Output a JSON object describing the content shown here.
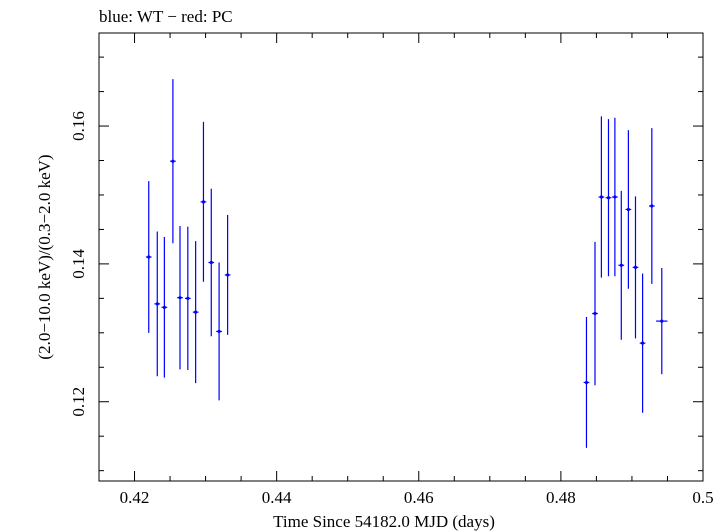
{
  "chart_data": {
    "type": "scatter",
    "title": "blue: WT − red: PC",
    "xlabel": "Time Since 54182.0 MJD (days)",
    "ylabel": "(2.0−10.0 keV)/(0.3−2.0 keV)",
    "xlim": [
      0.415,
      0.5
    ],
    "ylim": [
      0.1085,
      0.1735
    ],
    "xticks": [
      0.42,
      0.44,
      0.46,
      0.48,
      0.5
    ],
    "xtick_labels": [
      "0.42",
      "0.44",
      "0.46",
      "0.48",
      "0.5"
    ],
    "yticks": [
      0.12,
      0.14,
      0.16
    ],
    "ytick_labels": [
      "0.12",
      "0.14",
      "0.16"
    ],
    "grid": false,
    "series": [
      {
        "color": "#0000ff",
        "points": [
          {
            "x": 0.422,
            "y": 0.141,
            "yerr": 0.011,
            "xerr": 0.0004
          },
          {
            "x": 0.4232,
            "y": 0.1342,
            "yerr": 0.0105,
            "xerr": 0.0004
          },
          {
            "x": 0.4242,
            "y": 0.1337,
            "yerr": 0.0102,
            "xerr": 0.0004
          },
          {
            "x": 0.4254,
            "y": 0.1549,
            "yerr": 0.0119,
            "xerr": 0.0004
          },
          {
            "x": 0.4264,
            "y": 0.1351,
            "yerr": 0.0104,
            "xerr": 0.0004
          },
          {
            "x": 0.4275,
            "y": 0.135,
            "yerr": 0.0104,
            "xerr": 0.0004
          },
          {
            "x": 0.4286,
            "y": 0.133,
            "yerr": 0.0103,
            "xerr": 0.0004
          },
          {
            "x": 0.4297,
            "y": 0.149,
            "yerr": 0.0116,
            "xerr": 0.0004
          },
          {
            "x": 0.4308,
            "y": 0.1402,
            "yerr": 0.0107,
            "xerr": 0.0004
          },
          {
            "x": 0.4319,
            "y": 0.1302,
            "yerr": 0.01,
            "xerr": 0.0004
          },
          {
            "x": 0.4331,
            "y": 0.1384,
            "yerr": 0.0087,
            "xerr": 0.0004
          },
          {
            "x": 0.4836,
            "y": 0.1228,
            "yerr": 0.0095,
            "xerr": 0.0004
          },
          {
            "x": 0.4848,
            "y": 0.1328,
            "yerr": 0.0104,
            "xerr": 0.0004
          },
          {
            "x": 0.4857,
            "y": 0.1497,
            "yerr": 0.0117,
            "xerr": 0.0004
          },
          {
            "x": 0.4867,
            "y": 0.1496,
            "yerr": 0.0114,
            "xerr": 0.0004
          },
          {
            "x": 0.4876,
            "y": 0.1497,
            "yerr": 0.0115,
            "xerr": 0.0004
          },
          {
            "x": 0.4885,
            "y": 0.1398,
            "yerr": 0.0108,
            "xerr": 0.0004
          },
          {
            "x": 0.4895,
            "y": 0.1479,
            "yerr": 0.0115,
            "xerr": 0.0004
          },
          {
            "x": 0.4905,
            "y": 0.1395,
            "yerr": 0.0103,
            "xerr": 0.0004
          },
          {
            "x": 0.4915,
            "y": 0.1285,
            "yerr": 0.0101,
            "xerr": 0.0004
          },
          {
            "x": 0.4928,
            "y": 0.1484,
            "yerr": 0.0113,
            "xerr": 0.0004
          },
          {
            "x": 0.4942,
            "y": 0.1317,
            "yerr": 0.0077,
            "xerr": 0.0008
          }
        ]
      }
    ]
  }
}
